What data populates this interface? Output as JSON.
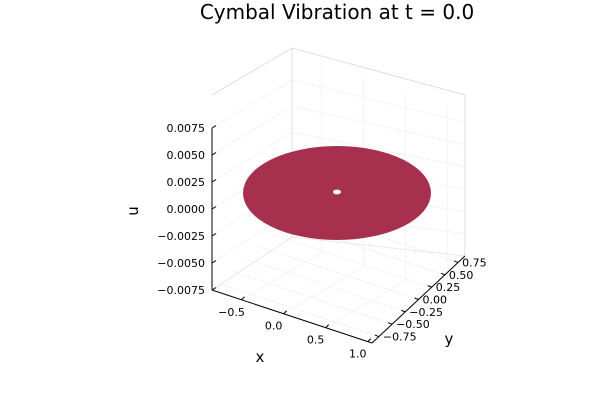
{
  "chart_data": {
    "type": "surface",
    "title": "Cymbal Vibration at t = 0.0",
    "xlabel": "x",
    "ylabel": "y",
    "zlabel": "u",
    "x_ticks": [
      "−0.5",
      "0.0",
      "0.5",
      "1.0"
    ],
    "y_ticks": [
      "0.75",
      "0.50",
      "0.25",
      "0.00",
      "−0.25",
      "−0.50",
      "−0.75"
    ],
    "z_ticks": [
      "0.0075",
      "0.0050",
      "0.0025",
      "0.0000",
      "−0.0025",
      "−0.0050",
      "−0.0075"
    ],
    "z_values": [
      0.0075,
      0.005,
      0.0025,
      0.0,
      -0.0025,
      -0.005,
      -0.0075
    ],
    "zlim": [
      -0.0075,
      0.0075
    ],
    "surface": {
      "shape": "disk",
      "outer_radius": 1.0,
      "inner_radius": 0.05,
      "u_value": 0.0,
      "color": "#a8304f"
    },
    "grid": true
  }
}
